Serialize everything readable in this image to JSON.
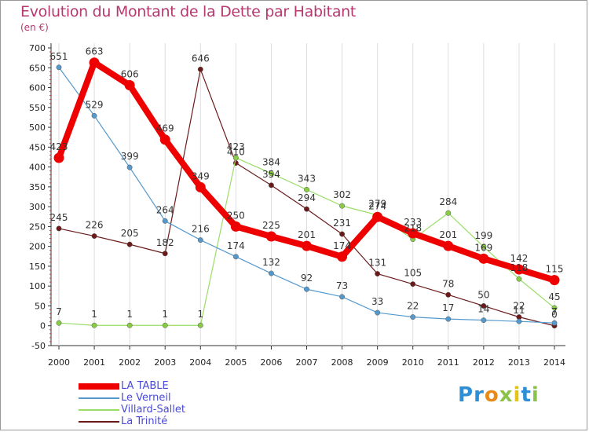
{
  "title": "Evolution du Montant de la Dette par Habitant",
  "subtitle": "(en €)",
  "brand": {
    "text": "Proxiti",
    "letters": [
      {
        "ch": "P",
        "color": "#2e8fd6"
      },
      {
        "ch": "r",
        "color": "#2e8fd6"
      },
      {
        "ch": "o",
        "color": "#e88a1a"
      },
      {
        "ch": "x",
        "color": "#8bc34a"
      },
      {
        "ch": "i",
        "color": "#e3c21a"
      },
      {
        "ch": "t",
        "color": "#2e8fd6"
      },
      {
        "ch": "i",
        "color": "#8bc34a"
      }
    ]
  },
  "chart_data": {
    "type": "line",
    "title": "Evolution du Montant de la Dette par Habitant",
    "ylabel": "(en €)",
    "ylim": [
      -50,
      700
    ],
    "yticks": [
      -50,
      0,
      50,
      100,
      150,
      200,
      250,
      300,
      350,
      400,
      450,
      500,
      550,
      600,
      650,
      700
    ],
    "grid": false,
    "legend_position": "bottom-left",
    "x": [
      2000,
      2001,
      2002,
      2003,
      2004,
      2005,
      2006,
      2007,
      2008,
      2009,
      2010,
      2011,
      2012,
      2013,
      2014
    ],
    "series": [
      {
        "name": "La Trinité",
        "color": "#6b1a1a",
        "marker_color": "#6b1a1a",
        "width": 1.2,
        "values": [
          245,
          226,
          205,
          182,
          646,
          410,
          354,
          294,
          231,
          131,
          105,
          78,
          50,
          22,
          0
        ],
        "labels": [
          "245",
          "226",
          "205",
          "182",
          "646",
          "410",
          "354",
          "294",
          "231",
          "131",
          "105",
          "78",
          "50",
          "22",
          "0"
        ]
      },
      {
        "name": "Villard-Sallet",
        "color": "#99dd66",
        "marker_color": "#88cc44",
        "width": 1.2,
        "values": [
          7,
          1,
          1,
          1,
          1,
          423,
          384,
          343,
          302,
          279,
          218,
          284,
          199,
          118,
          45
        ],
        "labels": [
          "7",
          "1",
          "1",
          "1",
          "1",
          "423",
          "384",
          "343",
          "302",
          "279",
          "218",
          "284",
          "199",
          "118",
          "45"
        ]
      },
      {
        "name": "Le Verneil",
        "color": "#5599cc",
        "marker_color": "#5599cc",
        "width": 1.2,
        "values": [
          651,
          529,
          399,
          264,
          216,
          174,
          132,
          92,
          73,
          33,
          22,
          17,
          14,
          11,
          7
        ],
        "labels": [
          "651",
          "529",
          "399",
          "264",
          "216",
          "174",
          "132",
          "92",
          "73",
          "33",
          "22",
          "17",
          "14",
          "11",
          "7"
        ]
      },
      {
        "name": "LA TABLE",
        "color": "#ee0000",
        "marker_color": "#ee0000",
        "width": 8,
        "values": [
          423,
          663,
          606,
          469,
          349,
          250,
          225,
          201,
          174,
          274,
          233,
          201,
          169,
          142,
          115
        ],
        "labels": [
          "423",
          "663",
          "606",
          "469",
          "349",
          "250",
          "225",
          "201",
          "174",
          "274",
          "233",
          "201",
          "169",
          "142",
          "115"
        ]
      }
    ]
  },
  "legend": [
    {
      "name": "LA TABLE",
      "color": "#ee0000",
      "thickness": 8
    },
    {
      "name": "Le Verneil",
      "color": "#5599cc",
      "thickness": 2
    },
    {
      "name": "Villard-Sallet",
      "color": "#99dd66",
      "thickness": 2
    },
    {
      "name": "La Trinité",
      "color": "#6b1a1a",
      "thickness": 2
    }
  ]
}
